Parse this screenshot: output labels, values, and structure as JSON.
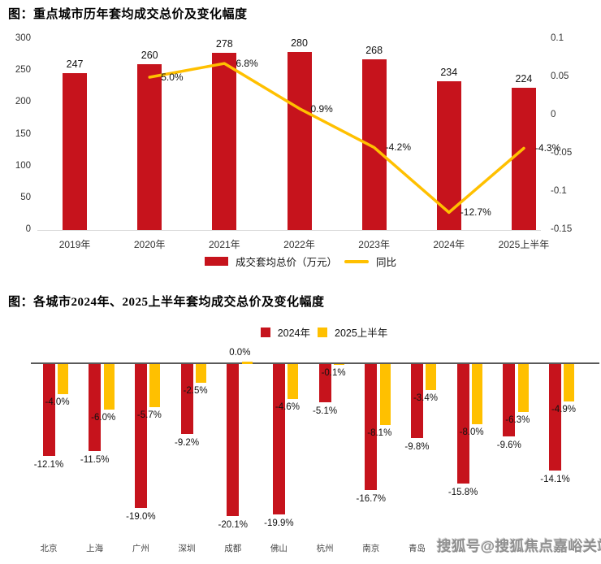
{
  "watermark": "搜狐号@搜狐焦点嘉峪关站",
  "colors": {
    "red": "#c6131c",
    "gold": "#ffc000",
    "axis_light": "#d9d9d9",
    "axis_dark": "#595959",
    "text_dark": "#111111",
    "text_gray": "#333333",
    "watermark_gray": "#8f8f8f"
  },
  "chart_data": [
    {
      "type": "combo-bar-line",
      "title": "图：重点城市历年套均成交总价及变化幅度",
      "categories": [
        "2019年",
        "2020年",
        "2021年",
        "2022年",
        "2023年",
        "2024年",
        "2025上半年"
      ],
      "series": [
        {
          "name": "成交套均总价（万元）",
          "type": "bar",
          "axis": "left",
          "color": "#c6131c",
          "values": [
            247,
            260,
            278,
            280,
            268,
            234,
            224
          ]
        },
        {
          "name": "同比",
          "type": "line",
          "axis": "right",
          "color": "#ffc000",
          "values": [
            null,
            0.05,
            0.068,
            0.009,
            -0.042,
            -0.127,
            -0.043
          ],
          "labels": [
            "",
            "5.0%",
            "6.8%",
            "0.9%",
            "-4.2%",
            "-12.7%",
            "-4.3%"
          ]
        }
      ],
      "left_axis": {
        "min": 0,
        "max": 300,
        "ticks": [
          300,
          250,
          200,
          150,
          100,
          50,
          0
        ]
      },
      "right_axis": {
        "min": -0.15,
        "max": 0.1,
        "ticks": [
          0.1,
          0.05,
          0,
          -0.05,
          -0.1,
          -0.15
        ]
      },
      "grid": false,
      "legend_position": "bottom"
    },
    {
      "type": "bar",
      "title": "图：各城市2024年、2025上半年套均成交总价及变化幅度",
      "categories": [
        "北京",
        "上海",
        "广州",
        "深圳",
        "成都",
        "佛山",
        "杭州",
        "南京",
        "青岛",
        "",
        "",
        ""
      ],
      "series": [
        {
          "name": "2024年",
          "color": "#c6131c",
          "values": [
            -12.1,
            -11.5,
            -19.0,
            -9.2,
            -20.1,
            -19.9,
            -5.1,
            -16.7,
            -9.8,
            -15.8,
            -9.6,
            -14.1
          ],
          "labels": [
            "-12.1%",
            "-11.5%",
            "-19.0%",
            "-9.2%",
            "-20.1%",
            "-19.9%",
            "-5.1%",
            "-16.7%",
            "-9.8%",
            "-15.8%",
            "-9.6%",
            "-14.1%"
          ]
        },
        {
          "name": "2025上半年",
          "color": "#ffc000",
          "values": [
            -4.0,
            -6.0,
            -5.7,
            -2.5,
            0.0,
            -4.6,
            -0.1,
            -8.1,
            -3.4,
            -8.0,
            -6.3,
            -4.9
          ],
          "labels": [
            "-4.0%",
            "-6.0%",
            "-5.7%",
            "-2.5%",
            "0.0%",
            "-4.6%",
            "-0.1%",
            "-8.1%",
            "-3.4%",
            "-8.0%",
            "-6.3%",
            "-4.9%"
          ]
        }
      ],
      "ylim": [
        -22,
        0
      ],
      "unit": "%",
      "grid": false,
      "legend_position": "top"
    }
  ]
}
